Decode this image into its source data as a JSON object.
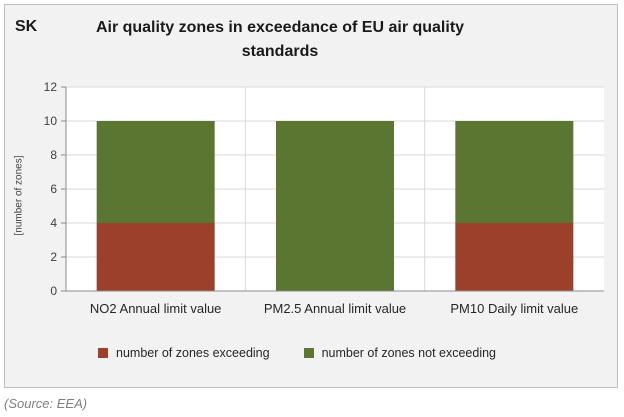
{
  "header": {
    "country": "SK",
    "title_line1": "Air quality zones in exceedance of EU air quality",
    "title_line2": "standards"
  },
  "source": "(Source: EEA)",
  "colors": {
    "exceeding": "#9c3f2b",
    "not_exceeding": "#5b7630",
    "gridline": "#d9d9d9",
    "axis": "#8c8c8c",
    "plot_background": "#ffffff",
    "chart_background": "#f2f2f2"
  },
  "chart_data": {
    "type": "bar",
    "stacked": true,
    "title": "Air quality zones in exceedance of EU air quality standards",
    "xlabel": "",
    "ylabel": "[number of zones]",
    "categories": [
      "NO2 Annual limit value",
      "PM2.5 Annual limit value",
      "PM10 Daily limit value"
    ],
    "series": [
      {
        "name": "number of zones exceeding",
        "values": [
          4,
          0,
          4
        ]
      },
      {
        "name": "number of zones not exceeding",
        "values": [
          6,
          10,
          6
        ]
      }
    ],
    "ylim": [
      0,
      12
    ],
    "yticks": [
      0,
      2,
      4,
      6,
      8,
      10,
      12
    ],
    "grid": true,
    "legend_position": "bottom"
  }
}
